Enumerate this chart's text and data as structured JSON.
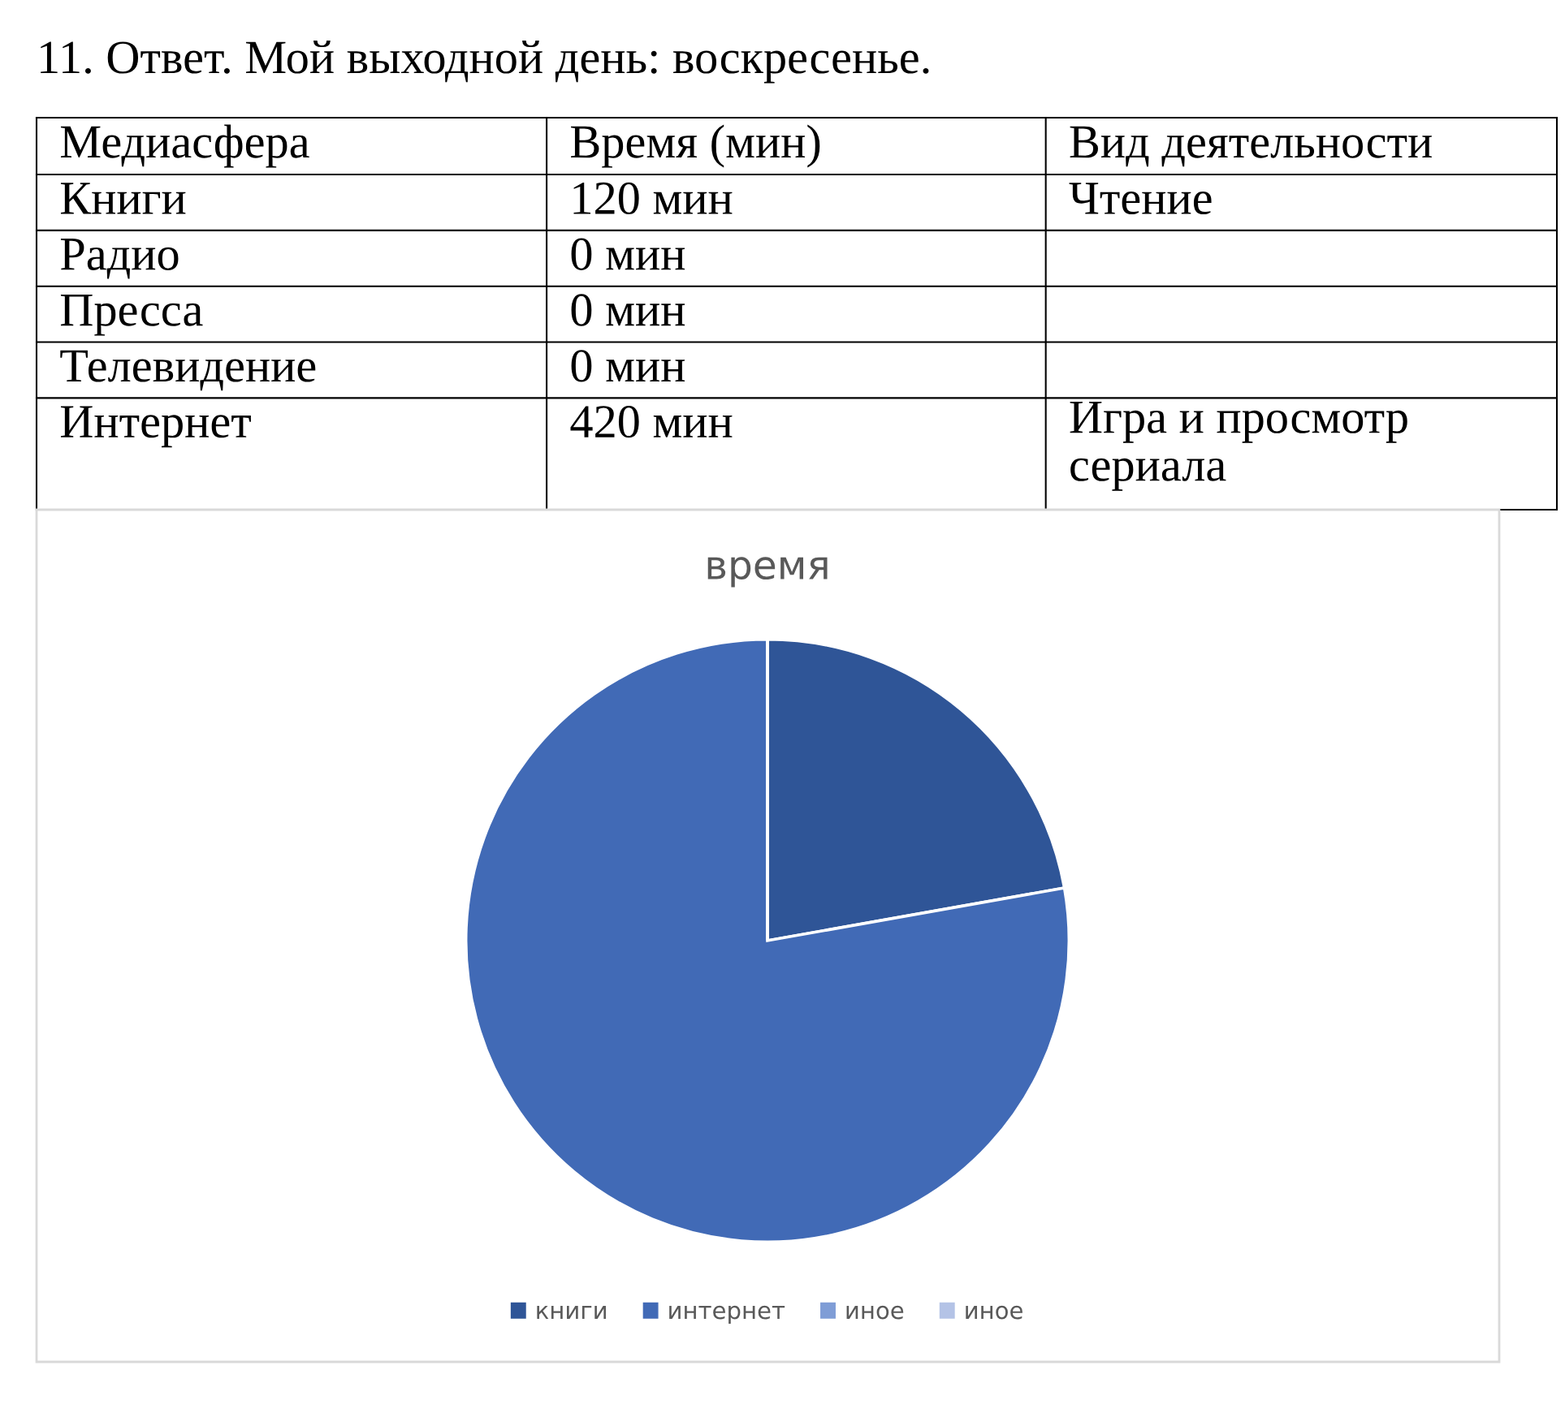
{
  "chart_data": [
    {
      "type": "heatmap",
      "title": "11. Ответ. Мой выходной день: воскресенье.",
      "ylabel": "Медиасфера",
      "categories": [
        "Время (мин)",
        "Вид деятельности"
      ],
      "y_categories": [
        "Книги",
        "Радио",
        "Пресса",
        "Телевидение",
        "Интернет"
      ],
      "cells": [
        [
          null,
          null
        ],
        [
          null,
          null
        ],
        [
          null,
          null
        ],
        [
          null,
          null
        ],
        [
          null,
          null
        ]
      ],
      "cell_labels": [
        [
          "120 мин",
          "Чтение"
        ],
        [
          "0 мин",
          null
        ],
        [
          "0 мин",
          null
        ],
        [
          "0 мин",
          null
        ],
        [
          "420 мин",
          "Игра и просмотр сериала"
        ]
      ]
    },
    {
      "type": "pie",
      "title": "время",
      "categories": [
        "книги",
        "интернет",
        "иное",
        "иное"
      ],
      "values": [
        22.2,
        77.8,
        0,
        0
      ],
      "colors": [
        "#2f5597",
        "#416ab6",
        "#7f9dd6",
        "#b4c3e6"
      ],
      "legend": "bottom"
    }
  ]
}
